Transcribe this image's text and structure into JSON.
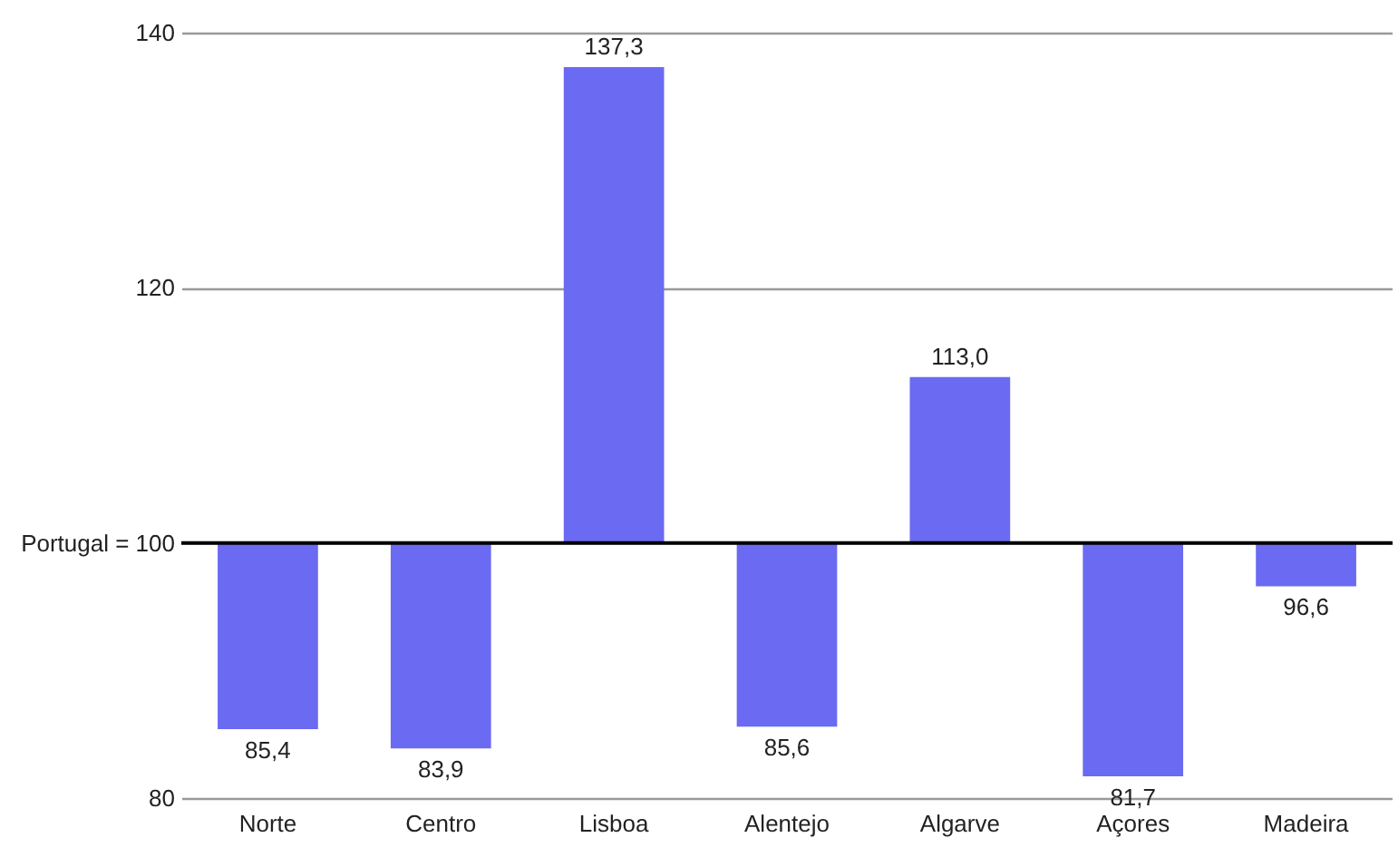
{
  "chart_data": {
    "type": "bar",
    "categories": [
      "Norte",
      "Centro",
      "Lisboa",
      "Alentejo",
      "Algarve",
      "Açores",
      "Madeira"
    ],
    "base": [
      100,
      100,
      100,
      100,
      100,
      100,
      100
    ],
    "values": [
      -14.6,
      -16.1,
      37.3,
      -14.4,
      13.0,
      -18.3,
      -3.4
    ],
    "value_labels": [
      "85,4",
      "83,9",
      "137,3",
      "85,6",
      "113,0",
      "81,7",
      "96,6"
    ],
    "color": "#6a6af2",
    "ylim": [
      80,
      140
    ],
    "yticks": [
      80,
      {
        "value": 100,
        "label": "Portugal = 100"
      },
      120,
      140
    ],
    "grid": "y",
    "ref_lines": [
      {
        "axis": "y",
        "value": 100,
        "color": "#000000"
      }
    ]
  }
}
